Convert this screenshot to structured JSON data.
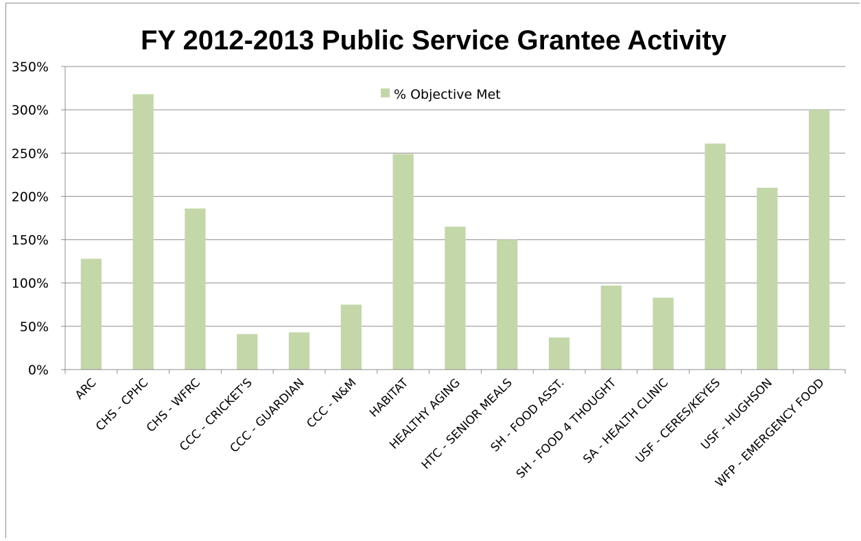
{
  "chart_data": {
    "type": "bar",
    "title": "FY 2012-2013 Public Service Grantee Activity",
    "xlabel": "",
    "ylabel": "",
    "categories": [
      "ARC",
      "CHS - CPHC",
      "CHS - WFRC",
      "CCC - CRICKET'S",
      "CCC - GUARDIAN",
      "CCC - N&M",
      "HABITAT",
      "HEALTHY AGING",
      "HTC - SENIOR MEALS",
      "SH - FOOD ASST.",
      "SH - FOOD 4 THOUGHT",
      "SA - HEALTH CLINIC",
      "USF - CERES/KEYES",
      "USF - HUGHSON",
      "WFP - EMERGENCY FOOD"
    ],
    "series": [
      {
        "name": "% Objective Met",
        "color": "#c4d7a9",
        "values": [
          128,
          318,
          186,
          41,
          43,
          75,
          249,
          165,
          150,
          37,
          97,
          83,
          261,
          210,
          300
        ]
      }
    ],
    "ylim": [
      0,
      350
    ],
    "yticks": [
      "0%",
      "50%",
      "100%",
      "150%",
      "200%",
      "250%",
      "300%",
      "350%"
    ],
    "grid": true,
    "legend": "top-center"
  }
}
